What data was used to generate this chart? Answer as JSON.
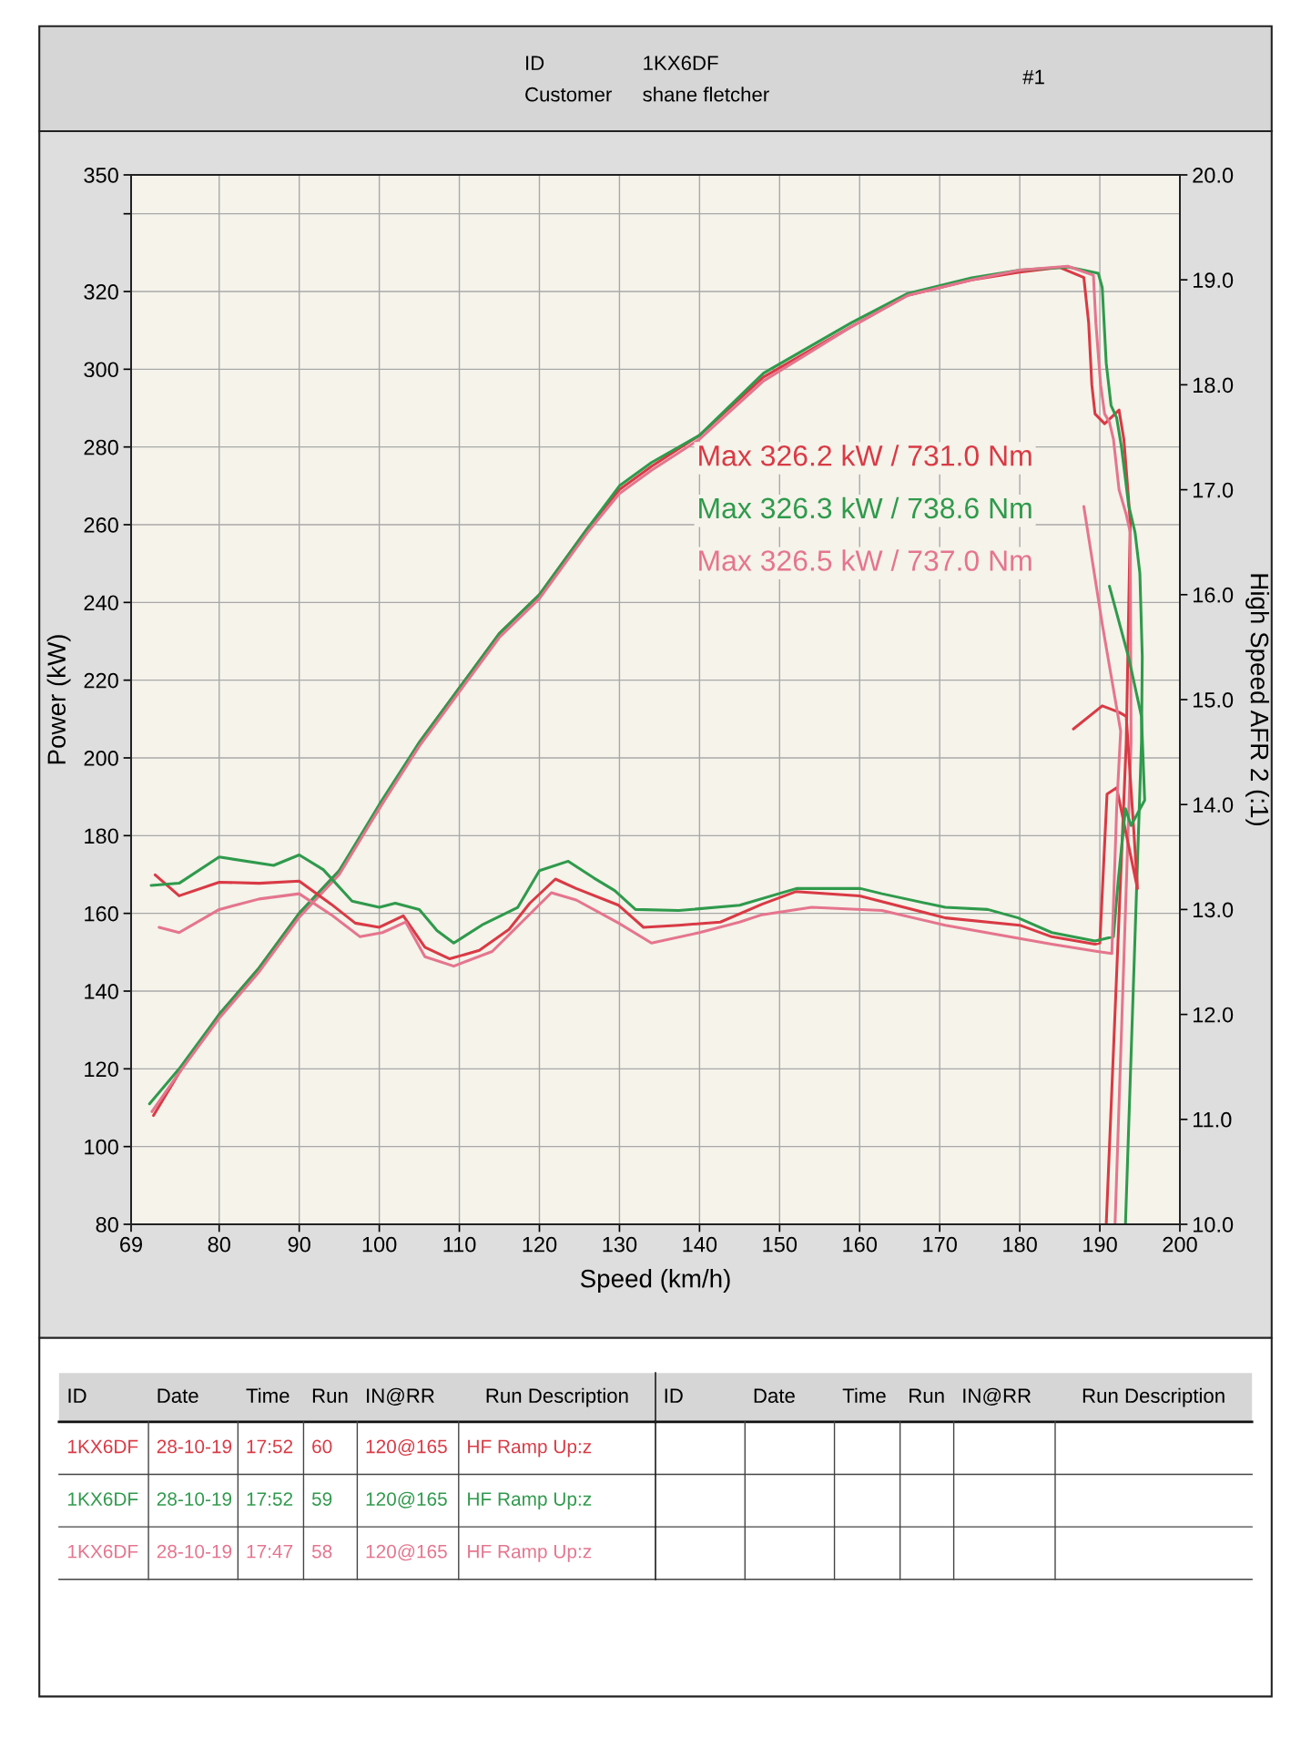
{
  "chart_data": {
    "type": "line",
    "xlabel": "Speed (km/h)",
    "ylabel": "Power (kW)",
    "y2label": "High Speed AFR 2 (:1)",
    "xlim": [
      69,
      200
    ],
    "xticks": [
      69,
      80,
      90,
      100,
      110,
      120,
      130,
      140,
      150,
      160,
      170,
      180,
      190,
      200
    ],
    "ylim": [
      80,
      350
    ],
    "yticks": [
      80,
      100,
      120,
      140,
      160,
      180,
      200,
      220,
      240,
      260,
      280,
      300,
      320,
      {
        "value": 340,
        "label": null
      },
      350
    ],
    "y2lim": [
      10,
      20
    ],
    "y2ticks": [
      {
        "value": 10,
        "label": "10.0"
      },
      {
        "value": 11,
        "label": "11.0"
      },
      {
        "value": 12,
        "label": "12.0"
      },
      {
        "value": 13,
        "label": "13.0"
      },
      {
        "value": 14,
        "label": "14.0"
      },
      {
        "value": 15,
        "label": "15.0"
      },
      {
        "value": 16,
        "label": "16.0"
      },
      {
        "value": 17,
        "label": "17.0"
      },
      {
        "value": 18,
        "label": "18.0"
      },
      {
        "value": 19,
        "label": "19.0"
      },
      {
        "value": 20,
        "label": "20.0"
      }
    ],
    "grid": true,
    "series": [
      {
        "name": "Max 326.2 kW / 731.0 Nm",
        "color": "#d93a45",
        "x": [
          71.8,
          75,
          80,
          85,
          90,
          95,
          100,
          105,
          110,
          115,
          120,
          126,
          130,
          134,
          140,
          148,
          159,
          166,
          174,
          180,
          185,
          188,
          188.6,
          189,
          189.4,
          190.6,
          192.4,
          193,
          193.5,
          193.8,
          193.3,
          190.8
        ],
        "values": [
          108,
          119,
          134,
          146,
          160,
          171,
          187,
          204,
          218,
          232,
          242,
          259,
          269,
          275,
          283,
          298,
          311,
          319,
          323,
          325,
          326.2,
          323.6,
          312,
          296,
          288.5,
          286,
          289.5,
          282,
          269,
          260.5,
          204,
          80
        ]
      },
      {
        "name": "Max 326.3 kW / 738.6 Nm",
        "color": "#2f9a4c",
        "x": [
          71.3,
          75,
          80,
          85,
          90,
          95,
          100,
          105,
          110,
          115,
          120,
          126,
          130,
          134,
          140,
          148,
          159,
          166,
          174,
          180,
          186,
          189.8,
          190.3,
          190.8,
          191.4,
          192.1,
          192.7,
          193.6,
          194.4,
          195,
          195.3,
          195.2,
          193.2
        ],
        "values": [
          111,
          120,
          134,
          146,
          160,
          171,
          188,
          204,
          218,
          232,
          242,
          259,
          270,
          276,
          283,
          299,
          312,
          319.5,
          323.5,
          325.5,
          326.3,
          324.7,
          321,
          301.5,
          290.7,
          287.5,
          280,
          265,
          258,
          247.5,
          226,
          204,
          80
        ]
      },
      {
        "name": "Max 326.5 kW / 737.0 Nm",
        "color": "#e5758e",
        "x": [
          71.6,
          75,
          80,
          85,
          90,
          95,
          100,
          105,
          110,
          115,
          120,
          126,
          130,
          134,
          140,
          148,
          159,
          166,
          174,
          180,
          186,
          189.2,
          189.5,
          190.1,
          190.6,
          191.2,
          191.7,
          192.4,
          193.3,
          193.8,
          193.9,
          191.9
        ],
        "values": [
          109,
          119,
          133,
          145,
          159,
          170,
          187,
          203,
          217,
          231,
          241,
          258,
          268,
          274,
          282,
          297,
          311,
          319,
          323,
          325.5,
          326.5,
          324.2,
          312,
          296,
          288.5,
          286.4,
          282,
          269,
          262.6,
          258,
          204,
          80
        ]
      },
      {
        "axis": "y2",
        "color": "#d93a45",
        "x": [
          72,
          75,
          80,
          85,
          90,
          94,
          97,
          100,
          103,
          105.7,
          108.8,
          112.5,
          116.2,
          118.8,
          122,
          124.6,
          129.9,
          133,
          137.4,
          142.6,
          147.8,
          152,
          160,
          170.7,
          180,
          184,
          189.4,
          190,
          190.9,
          192.1,
          194.7,
          194.2,
          193.3,
          192.4,
          190.3,
          186.7
        ],
        "values": [
          13.33,
          13.13,
          13.26,
          13.25,
          13.27,
          13.05,
          12.87,
          12.83,
          12.94,
          12.64,
          12.53,
          12.61,
          12.81,
          13.06,
          13.29,
          13.2,
          13.04,
          12.83,
          12.85,
          12.88,
          13.05,
          13.17,
          13.13,
          12.92,
          12.85,
          12.74,
          12.67,
          12.68,
          14.1,
          14.16,
          13.2,
          13.8,
          14.84,
          14.88,
          14.94,
          14.72
        ]
      },
      {
        "axis": "y2",
        "color": "#2f9a4c",
        "x": [
          71.5,
          75,
          80,
          86.8,
          90,
          93,
          96.6,
          100,
          102,
          105,
          107.2,
          109.3,
          113,
          117.3,
          120,
          123.6,
          126.8,
          129.4,
          132,
          137.4,
          145,
          152.1,
          160.1,
          162.8,
          170.7,
          176,
          179.8,
          184,
          189.4,
          191.7,
          192.3,
          193.2,
          193.9,
          195.6,
          195.2,
          193.6,
          191.2
        ],
        "values": [
          13.23,
          13.25,
          13.5,
          13.42,
          13.52,
          13.38,
          13.08,
          13.02,
          13.06,
          13.0,
          12.8,
          12.68,
          12.86,
          13.02,
          13.37,
          13.46,
          13.3,
          13.18,
          13.0,
          12.99,
          13.04,
          13.2,
          13.2,
          13.15,
          13.02,
          13.0,
          12.92,
          12.78,
          12.7,
          12.74,
          13.28,
          13.96,
          13.8,
          14.04,
          14.84,
          15.4,
          16.08
        ]
      },
      {
        "axis": "y2",
        "color": "#e5758e",
        "x": [
          72.5,
          75,
          80,
          85,
          90,
          94,
          97.6,
          100.4,
          103.3,
          105.7,
          109.3,
          114.1,
          117.8,
          121.5,
          124.6,
          129.9,
          134,
          140,
          145,
          147.8,
          154,
          162.8,
          170.7,
          178.7,
          184,
          189.7,
          191.5,
          192.1,
          192.6,
          190.3,
          188
        ],
        "values": [
          12.83,
          12.78,
          13.0,
          13.1,
          13.15,
          12.95,
          12.74,
          12.78,
          12.88,
          12.55,
          12.46,
          12.6,
          12.88,
          13.16,
          13.09,
          12.87,
          12.68,
          12.78,
          12.88,
          12.95,
          13.02,
          12.99,
          12.85,
          12.74,
          12.67,
          12.6,
          12.58,
          13.96,
          14.7,
          15.72,
          16.84
        ]
      }
    ],
    "annotations": [
      "ID",
      "1KX6DF",
      "Customer",
      "shane fletcher",
      "#1",
      "ID",
      "Date",
      "Time",
      "Run",
      "IN@RR",
      "Run Description",
      "ID",
      "Date",
      "Time",
      "Run",
      "IN@RR",
      "Run Description",
      "1KX6DF",
      "28-10-19",
      "17:52",
      "60",
      "120@165",
      "HF Ramp Up:z",
      "1KX6DF",
      "28-10-19",
      "17:52",
      "59",
      "120@165",
      "HF Ramp Up:z",
      "1KX6DF",
      "28-10-19",
      "17:47",
      "58",
      "120@165",
      "HF Ramp Up:z"
    ]
  }
}
